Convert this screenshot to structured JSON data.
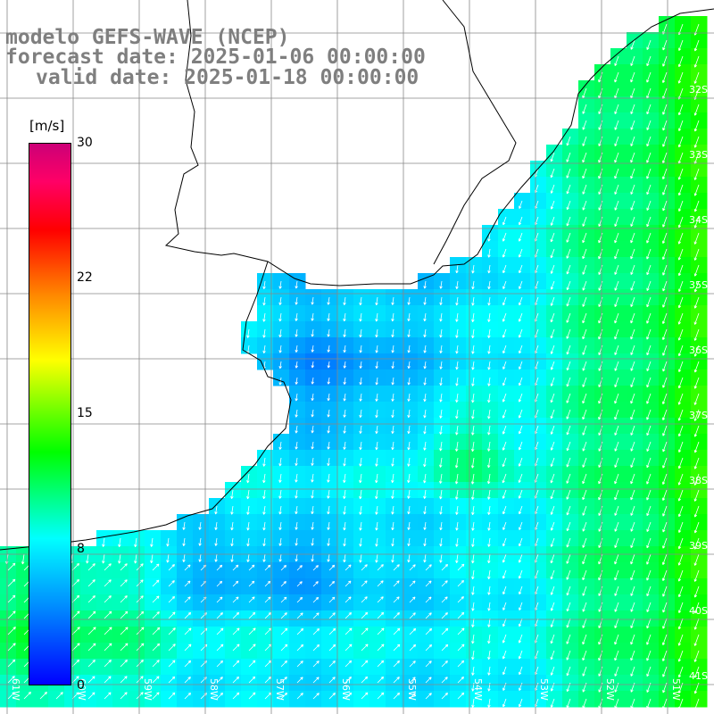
{
  "title": {
    "line1": "modelo GEFS-WAVE (NCEP)",
    "line2": "forecast date: 2025-01-06 00:00:00",
    "line3": "valid date: 2025-01-18 00:00:00"
  },
  "colorbar": {
    "unit": "[m/s]",
    "ticks": [
      "30",
      "22",
      "15",
      "8",
      "0"
    ]
  },
  "map": {
    "lat_labels": [
      "32S",
      "33S",
      "34S",
      "35S",
      "36S",
      "37S",
      "38S",
      "39S",
      "40S",
      "41S"
    ],
    "lon_labels": [
      "61W",
      "60W",
      "59W",
      "58W",
      "57W",
      "56W",
      "55W",
      "54W",
      "53W",
      "52W",
      "51W"
    ]
  },
  "colors": {
    "title_text": "#7f7f7f",
    "ocean_low": "#0033ff",
    "ocean_mid": "#00e6ff",
    "ocean_high": "#00ff00",
    "land": "#ffffff",
    "grid": "#888888",
    "coast": "#000000",
    "arrows": "#ffffff"
  }
}
